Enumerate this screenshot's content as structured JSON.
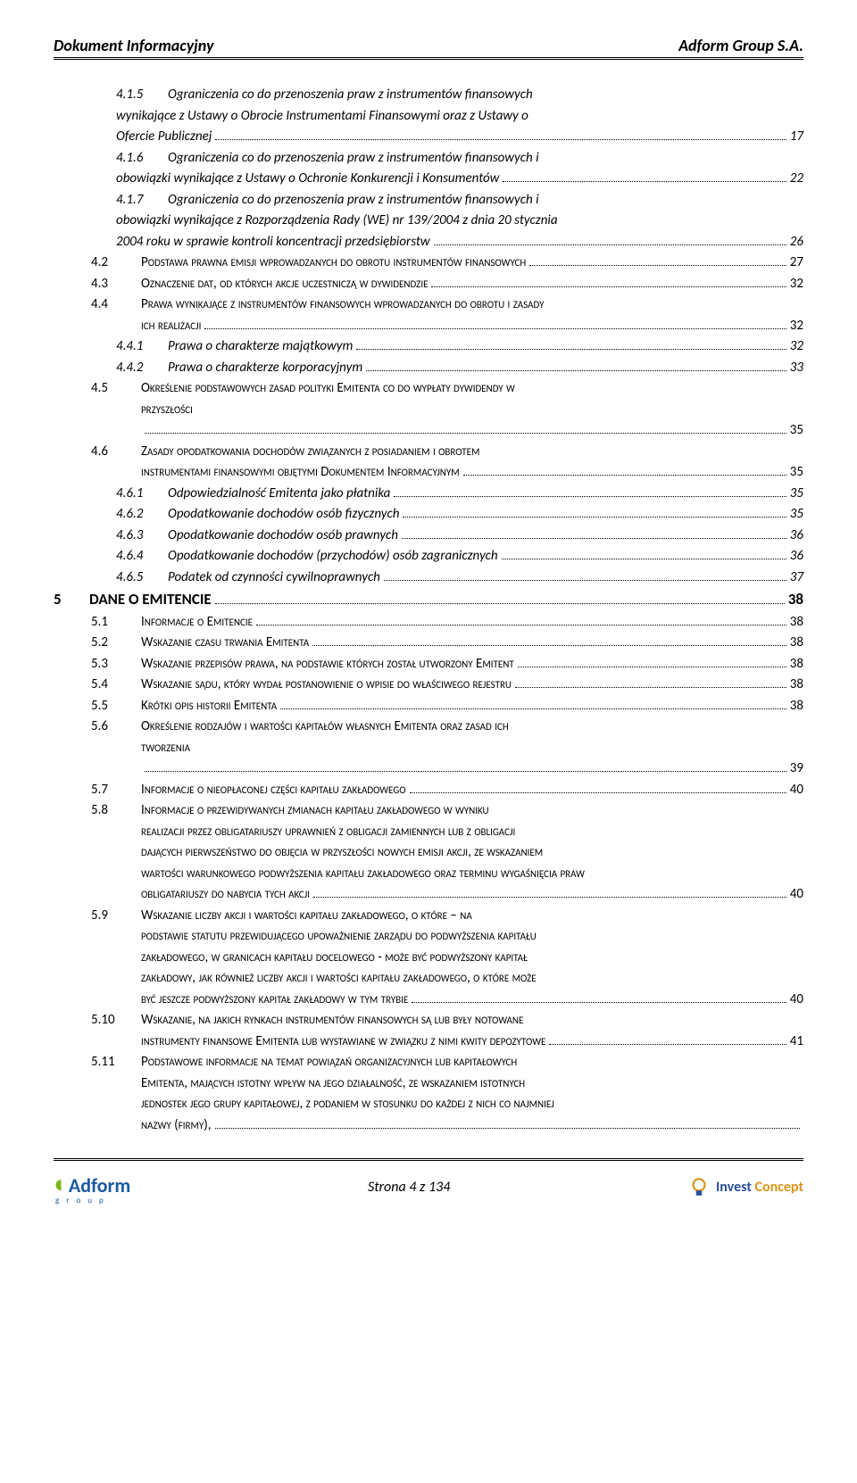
{
  "header": {
    "left": "Dokument Informacyjny",
    "right": "Adform Group S.A."
  },
  "toc": [
    {
      "lvl": 3,
      "num": "4.1.5",
      "text": "Ograniczenia co do przenoszenia praw z instrumentów finansowych wynikające z Ustawy o Obrocie Instrumentami Finansowymi oraz z Ustawy o Ofercie Publicznej",
      "page": "17"
    },
    {
      "lvl": 3,
      "num": "4.1.6",
      "text": "Ograniczenia co do przenoszenia praw z instrumentów finansowych i obowiązki wynikające z Ustawy o Ochronie Konkurencji i Konsumentów",
      "page": "22"
    },
    {
      "lvl": 3,
      "num": "4.1.7",
      "text": "Ograniczenia co do przenoszenia praw z instrumentów finansowych i obowiązki wynikające z Rozporządzenia Rady (WE) nr 139/2004 z dnia 20 stycznia 2004 roku w sprawie kontroli koncentracji przedsiębiorstw",
      "page": "26"
    },
    {
      "lvl": 2,
      "num": "4.2",
      "text": "Podstawa prawna emisji wprowadzanych do obrotu instrumentów finansowych",
      "page": "27"
    },
    {
      "lvl": 2,
      "num": "4.3",
      "text": "Oznaczenie dat, od których akcje uczestniczą w dywidendzie",
      "page": "32"
    },
    {
      "lvl": 2,
      "num": "4.4",
      "text": "Prawa wynikające z instrumentów finansowych wprowadzanych do obrotu i zasady ich realizacji",
      "page": "32"
    },
    {
      "lvl": 3,
      "num": "4.4.1",
      "text": "Prawa o charakterze majątkowym",
      "page": "32"
    },
    {
      "lvl": 3,
      "num": "4.4.2",
      "text": "Prawa o charakterze korporacyjnym",
      "page": "33"
    },
    {
      "lvl": 2,
      "num": "4.5",
      "text": "Określenie podstawowych zasad polityki Emitenta co do wypłaty dywidendy w przyszłości",
      "page": "35",
      "blankLastLine": true
    },
    {
      "lvl": 2,
      "num": "4.6",
      "text": "Zasady opodatkowania dochodów związanych z posiadaniem i obrotem instrumentami finansowymi objętymi Dokumentem Informacyjnym",
      "page": "35"
    },
    {
      "lvl": 3,
      "num": "4.6.1",
      "text": "Odpowiedzialność Emitenta jako płatnika",
      "page": "35"
    },
    {
      "lvl": 3,
      "num": "4.6.2",
      "text": "Opodatkowanie dochodów osób fizycznych",
      "page": "35"
    },
    {
      "lvl": 3,
      "num": "4.6.3",
      "text": "Opodatkowanie dochodów osób prawnych",
      "page": "36"
    },
    {
      "lvl": 3,
      "num": "4.6.4",
      "text": "Opodatkowanie dochodów (przychodów) osób zagranicznych",
      "page": "36"
    },
    {
      "lvl": 3,
      "num": "4.6.5",
      "text": "Podatek od czynności cywilnoprawnych",
      "page": "37"
    },
    {
      "lvl": 1,
      "num": "5",
      "text": "DANE O EMITENCIE",
      "page": "38"
    },
    {
      "lvl": 2,
      "num": "5.1",
      "text": "Informacje o Emitencie",
      "page": "38"
    },
    {
      "lvl": 2,
      "num": "5.2",
      "text": "Wskazanie czasu trwania Emitenta",
      "page": "38"
    },
    {
      "lvl": 2,
      "num": "5.3",
      "text": "Wskazanie przepisów prawa, na podstawie których został utworzony Emitent",
      "page": "38"
    },
    {
      "lvl": 2,
      "num": "5.4",
      "text": "Wskazanie sądu, który wydał postanowienie o wpisie do właściwego rejestru",
      "page": "38"
    },
    {
      "lvl": 2,
      "num": "5.5",
      "text": "Krótki opis historii Emitenta",
      "page": "38"
    },
    {
      "lvl": 2,
      "num": "5.6",
      "text": "Określenie rodzajów i wartości kapitałów własnych Emitenta oraz zasad ich tworzenia",
      "page": "39",
      "blankLastLine": true
    },
    {
      "lvl": 2,
      "num": "5.7",
      "text": "Informacje o nieopłaconej części kapitału zakładowego",
      "page": "40"
    },
    {
      "lvl": 2,
      "num": "5.8",
      "text": "Informacje o przewidywanych zmianach kapitału zakładowego w wyniku realizacji przez obligatariuszy uprawnień z obligacji zamiennych lub z obligacji dających pierwszeństwo do objęcia w przyszłości nowych emisji akcji, ze wskazaniem wartości warunkowego podwyższenia kapitału zakładowego oraz terminu wygaśnięcia praw obligatariuszy do nabycia tych akcji",
      "page": "40"
    },
    {
      "lvl": 2,
      "num": "5.9",
      "text": "Wskazanie liczby akcji i wartości kapitału zakładowego, o które – na podstawie statutu przewidującego upoważnienie zarządu do podwyższenia kapitału zakładowego, w granicach kapitału docelowego - może być  podwyższony kapitał zakładowy, jak również liczby akcji i wartości kapitału zakładowego, o które może być jeszcze podwyższony kapitał zakładowy w tym trybie",
      "page": "40"
    },
    {
      "lvl": 2,
      "num": "5.10",
      "text": "Wskazanie, na jakich rynkach instrumentów finansowych są lub były notowane instrumenty finansowe Emitenta lub wystawiane w związku z nimi kwity depozytowe",
      "page": "41"
    },
    {
      "lvl": 2,
      "num": "5.11",
      "text": "Podstawowe informacje na temat powiązań organizacyjnych lub kapitałowych Emitenta, mających istotny wpływ na jego działalność, ze wskazaniem istotnych jednostek jego grupy kapitałowej, z podaniem w stosunku do każdej z nich co najmniej nazwy (firmy),",
      "page": ""
    }
  ],
  "footer": {
    "pageLabel": "Strona 4 z 134",
    "adformName": "Adform",
    "adformSub": "g r o u p",
    "investName1": "Invest",
    "investName2": "Concept"
  }
}
